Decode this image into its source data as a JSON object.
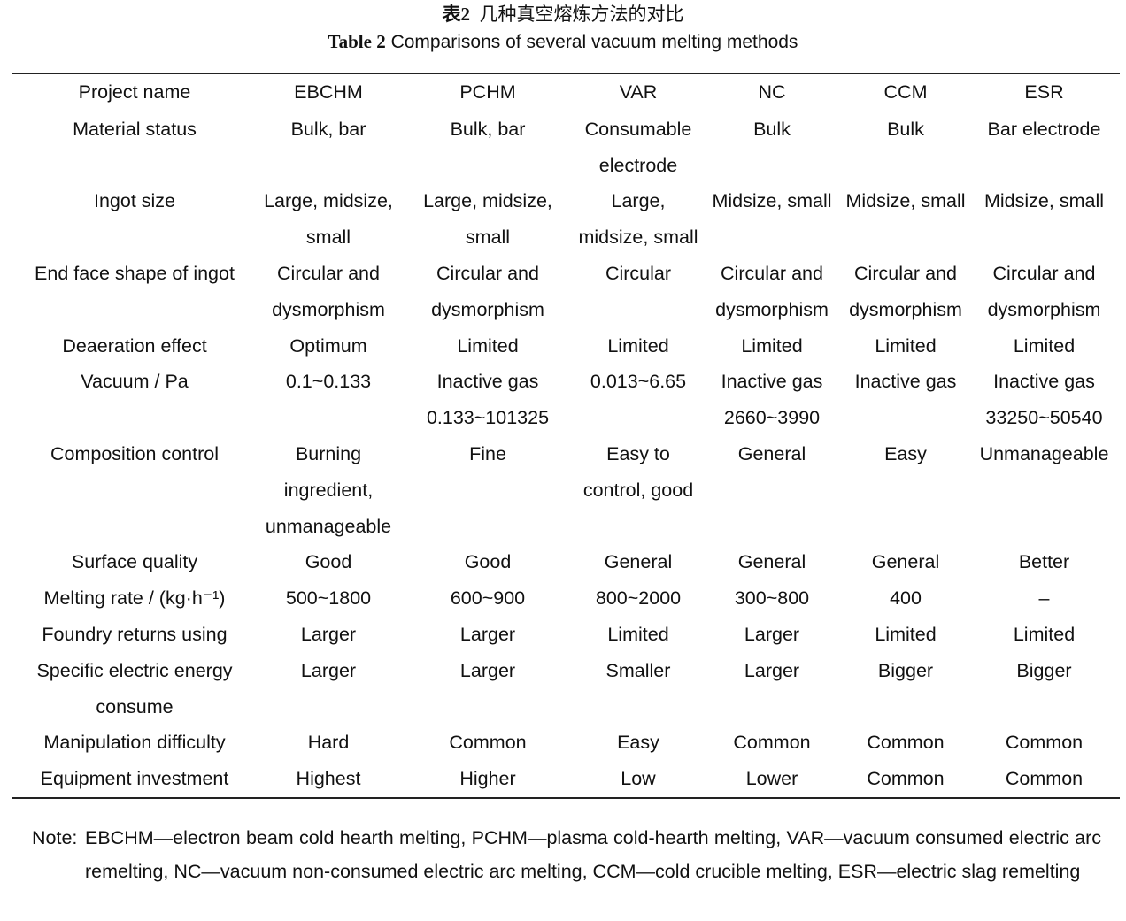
{
  "caption": {
    "label_cn": "表2",
    "title_cn": "几种真空熔炼方法的对比",
    "label_en": "Table 2",
    "title_en": "Comparisons of several vacuum melting methods"
  },
  "table": {
    "header": [
      "Project name",
      "EBCHM",
      "PCHM",
      "VAR",
      "NC",
      "CCM",
      "ESR"
    ],
    "rows": [
      [
        "Material status",
        "Bulk, bar",
        "Bulk, bar",
        "Consumable electrode",
        "Bulk",
        "Bulk",
        "Bar electrode"
      ],
      [
        "Ingot size",
        "Large, midsize, small",
        "Large, midsize, small",
        "Large, midsize, small",
        "Midsize, small",
        "Midsize, small",
        "Midsize, small"
      ],
      [
        "End face shape of ingot",
        "Circular and dysmorphism",
        "Circular and dysmorphism",
        "Circular",
        "Circular and dysmorphism",
        "Circular and dysmorphism",
        "Circular and dysmorphism"
      ],
      [
        "Deaeration effect",
        "Optimum",
        "Limited",
        "Limited",
        "Limited",
        "Limited",
        "Limited"
      ],
      [
        "Vacuum / Pa",
        "0.1~0.133",
        "Inactive gas 0.133~101325",
        "0.013~6.65",
        "Inactive gas 2660~3990",
        "Inactive gas",
        "Inactive gas 33250~50540"
      ],
      [
        "Composition control",
        "Burning ingredient, unmanageable",
        "Fine",
        "Easy to control, good",
        "General",
        "Easy",
        "Unmanageable"
      ],
      [
        "Surface quality",
        "Good",
        "Good",
        "General",
        "General",
        "General",
        "Better"
      ],
      [
        "Melting rate / (kg·h⁻¹)",
        "500~1800",
        "600~900",
        "800~2000",
        "300~800",
        "400",
        "–"
      ],
      [
        "Foundry returns using",
        "Larger",
        "Larger",
        "Limited",
        "Larger",
        "Limited",
        "Limited"
      ],
      [
        "Specific electric energy consume",
        "Larger",
        "Larger",
        "Smaller",
        "Larger",
        "Bigger",
        "Bigger"
      ],
      [
        "Manipulation difficulty",
        "Hard",
        "Common",
        "Easy",
        "Common",
        "Common",
        "Common"
      ],
      [
        "Equipment investment",
        "Highest",
        "Higher",
        "Low",
        "Lower",
        "Common",
        "Common"
      ]
    ]
  },
  "note": {
    "label": "Note:",
    "text": "EBCHM—electron beam cold hearth melting, PCHM—plasma cold-hearth melting, VAR—vacuum consumed electric arc remelting, NC—vacuum non-consumed electric arc melting, CCM—cold crucible melting, ESR—electric slag remelting"
  }
}
